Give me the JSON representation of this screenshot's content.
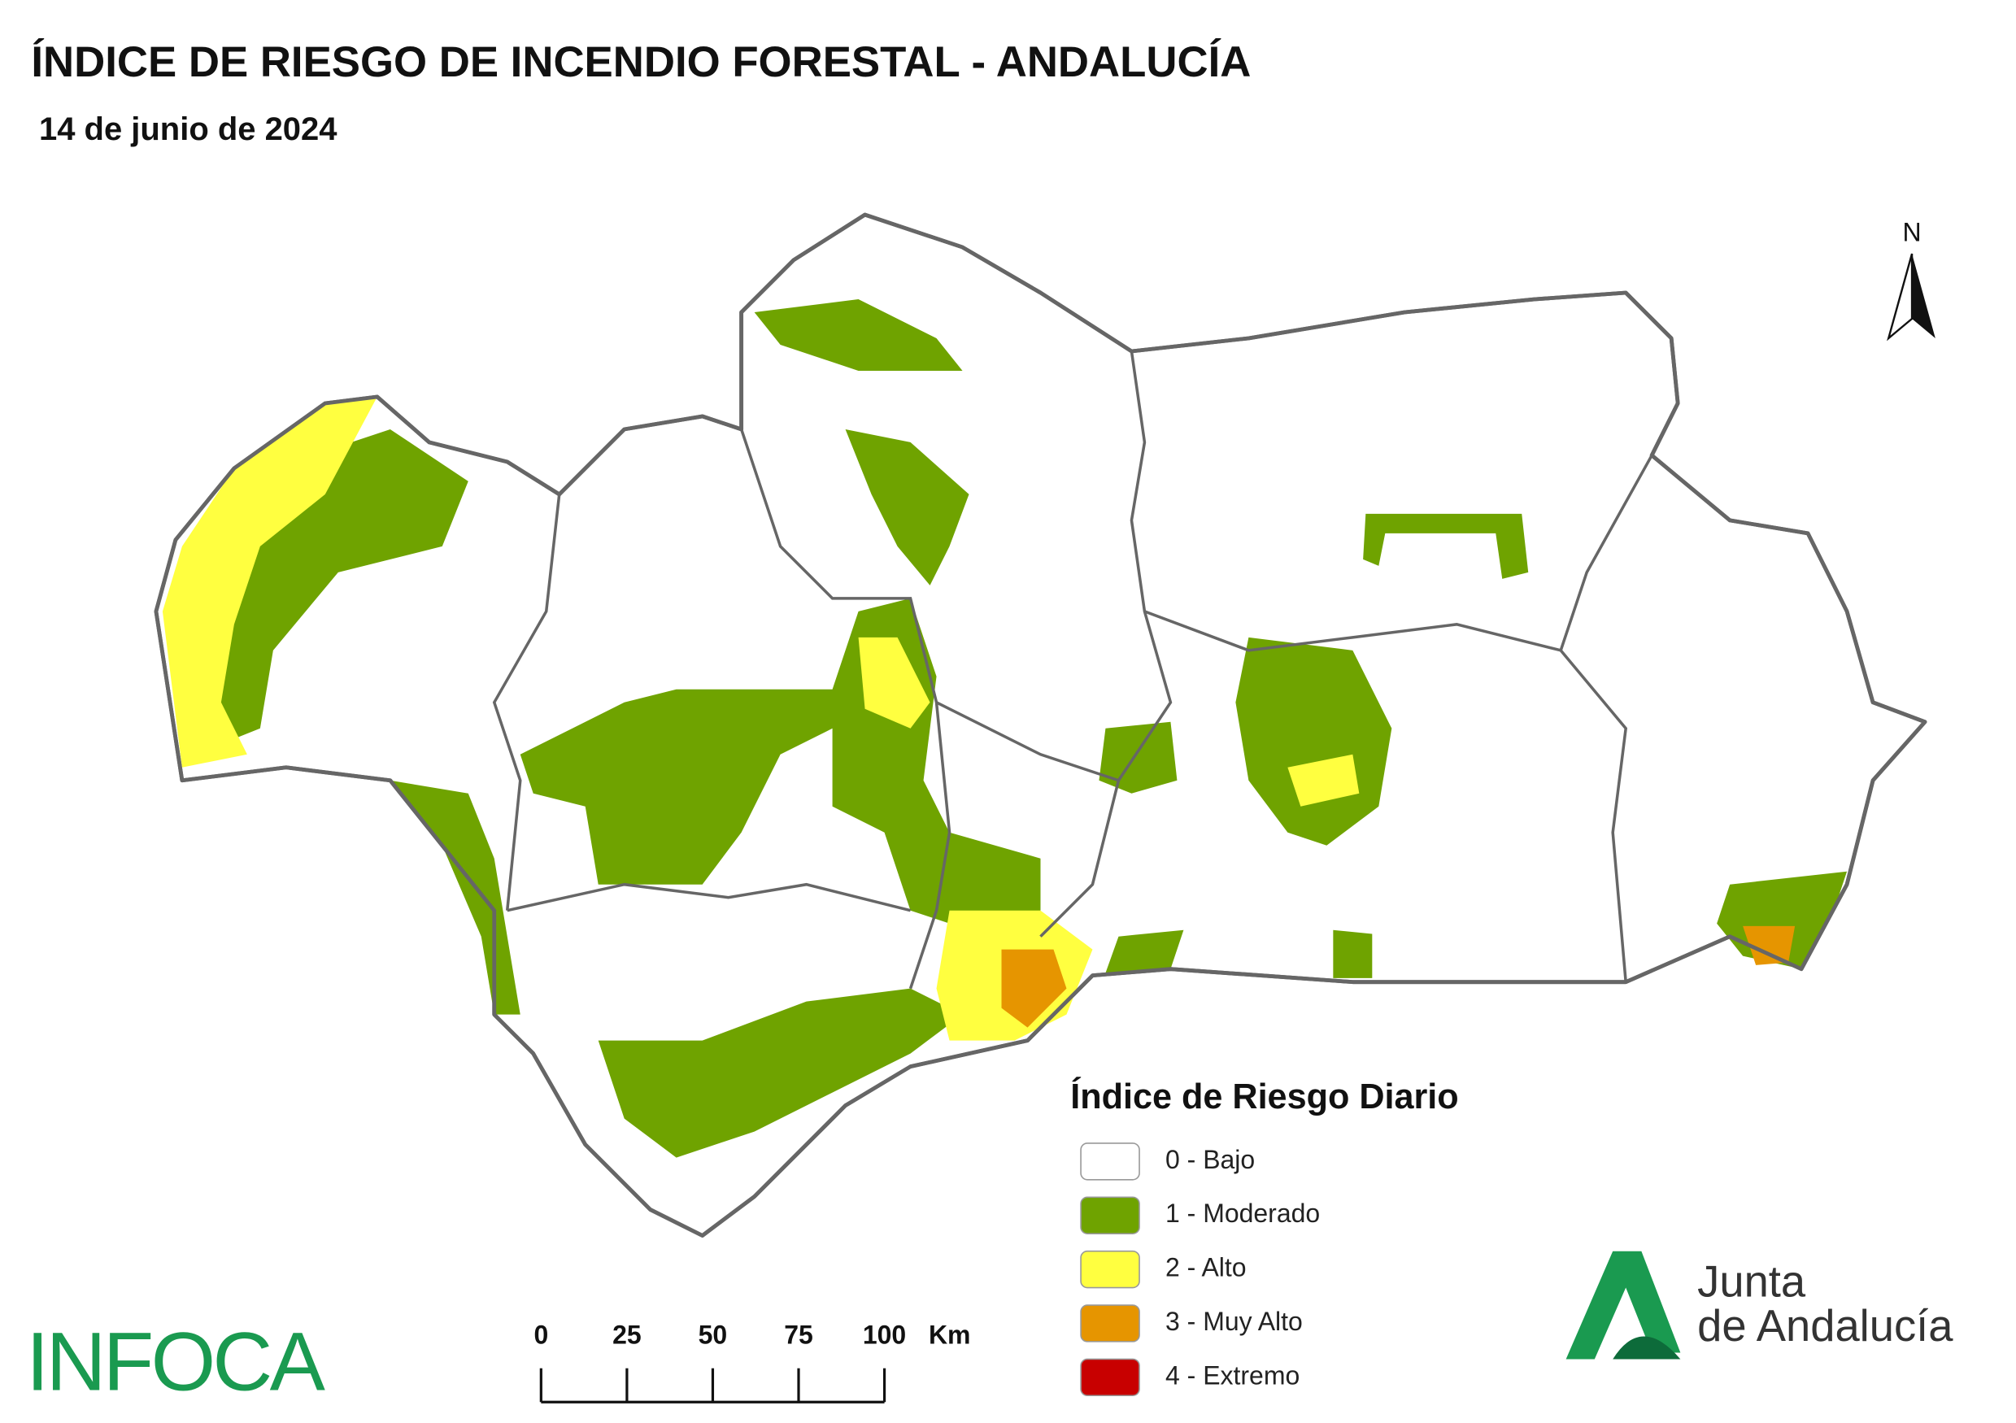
{
  "header": {
    "title": "ÍNDICE DE RIESGO DE INCENDIO FORESTAL - ANDALUCÍA",
    "date": "14 de junio de 2024"
  },
  "north_arrow": {
    "label": "N"
  },
  "legend": {
    "title": "Índice de Riesgo Diario",
    "items": [
      {
        "label": "0 - Bajo",
        "color": "#ffffff"
      },
      {
        "label": "1 - Moderado",
        "color": "#6fa300"
      },
      {
        "label": "2 - Alto",
        "color": "#ffff40"
      },
      {
        "label": "3 - Muy Alto",
        "color": "#e69500"
      },
      {
        "label": "4 - Extremo",
        "color": "#c80000"
      }
    ]
  },
  "scale_bar": {
    "ticks": [
      0,
      25,
      50,
      75,
      100
    ],
    "unit": "Km"
  },
  "logos": {
    "infoca": "INFOCA",
    "junta_line1": "Junta",
    "junta_line2": "de Andalucía"
  }
}
